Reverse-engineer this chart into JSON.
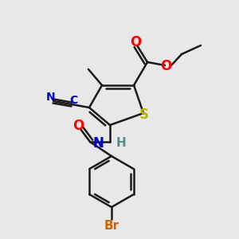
{
  "bg_color": "#e8e8e8",
  "bond_color": "#1a1a1a",
  "bond_width": 1.8,
  "atom_colors": {
    "S": "#b8b800",
    "O": "#ff0000",
    "N": "#0000cc",
    "H": "#5a8a8a",
    "Br": "#cc6600",
    "CN_color": "#0000cc"
  },
  "font_size": 10,
  "font_size_sub": 9
}
